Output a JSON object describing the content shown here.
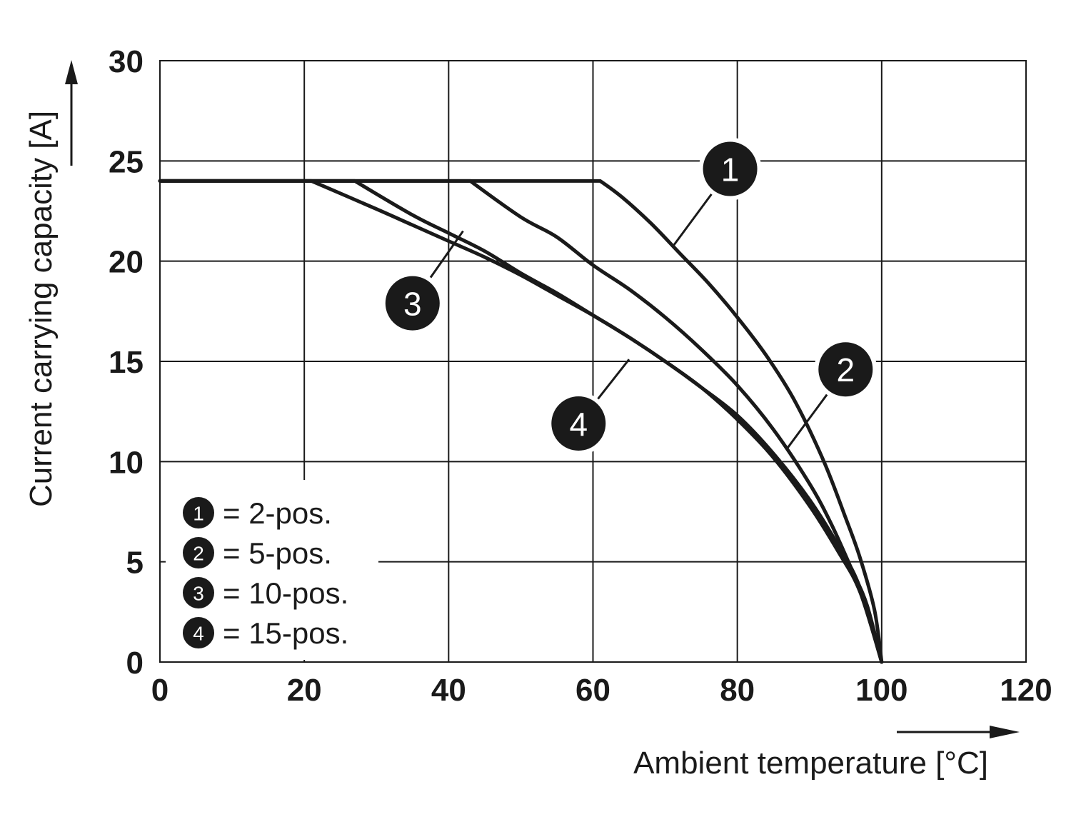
{
  "chart_data": {
    "type": "line",
    "title": "",
    "xlabel": "Ambient temperature [°C]",
    "ylabel": "Current carrying capacity [A]",
    "xlim": [
      0,
      120
    ],
    "ylim": [
      0,
      30
    ],
    "x_ticks": [
      "0",
      "20",
      "40",
      "60",
      "80",
      "100",
      "120"
    ],
    "y_ticks": [
      "0",
      "5",
      "10",
      "15",
      "20",
      "25",
      "30"
    ],
    "grid": true,
    "legend_position": "bottom-left",
    "legend": [
      {
        "marker": "1",
        "text": "= 2-pos."
      },
      {
        "marker": "2",
        "text": "= 5-pos."
      },
      {
        "marker": "3",
        "text": "= 10-pos."
      },
      {
        "marker": "4",
        "text": "= 15-pos."
      }
    ],
    "series": [
      {
        "marker": "1",
        "x": [
          0,
          61,
          64,
          68,
          72,
          76,
          80,
          84,
          88,
          92,
          95,
          97,
          99,
          100
        ],
        "y": [
          24,
          24,
          23.2,
          21.9,
          20.4,
          18.9,
          17.2,
          15.3,
          13.0,
          10.0,
          7.2,
          5.2,
          2.6,
          0
        ]
      },
      {
        "marker": "2",
        "x": [
          0,
          43,
          50,
          55,
          60,
          65,
          70,
          75,
          80,
          85,
          90,
          93,
          96,
          98,
          100
        ],
        "y": [
          24,
          24,
          22.2,
          21.2,
          19.8,
          18.6,
          17.2,
          15.6,
          13.8,
          11.6,
          8.9,
          6.9,
          4.5,
          2.8,
          0
        ]
      },
      {
        "marker": "3",
        "x": [
          0,
          27,
          35,
          40,
          45,
          50,
          55,
          60,
          65,
          70,
          75,
          80,
          85,
          90,
          94,
          97,
          100
        ],
        "y": [
          24,
          24,
          22.3,
          21.4,
          20.5,
          19.4,
          18.4,
          17.3,
          16.2,
          15.0,
          13.7,
          12.3,
          10.4,
          8.1,
          5.8,
          3.7,
          0
        ]
      },
      {
        "marker": "4",
        "x": [
          0,
          21,
          30,
          35,
          40,
          45,
          50,
          55,
          60,
          65,
          70,
          75,
          80,
          85,
          90,
          94,
          97,
          100
        ],
        "y": [
          24,
          24,
          22.6,
          21.8,
          21.0,
          20.2,
          19.3,
          18.3,
          17.3,
          16.2,
          15.0,
          13.7,
          12.1,
          10.2,
          7.8,
          5.5,
          3.5,
          0
        ]
      }
    ],
    "annotations": [
      {
        "marker": "1",
        "x": 79,
        "y": 24.6,
        "leader_to_x": 71,
        "leader_to_y": 20.7
      },
      {
        "marker": "2",
        "x": 95,
        "y": 14.6,
        "leader_to_x": 87,
        "leader_to_y": 10.7
      },
      {
        "marker": "3",
        "x": 35,
        "y": 17.9,
        "leader_to_x": 42,
        "leader_to_y": 21.5
      },
      {
        "marker": "4",
        "x": 58,
        "y": 11.9,
        "leader_to_x": 65,
        "leader_to_y": 15.1
      }
    ]
  }
}
